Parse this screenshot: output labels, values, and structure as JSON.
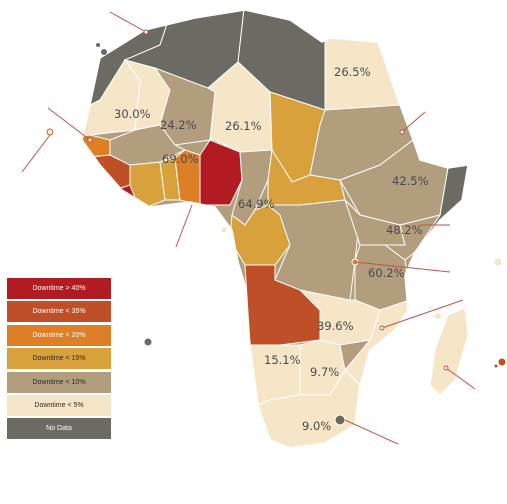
{
  "colors": {
    "downtime_gt_40": "#b31b23",
    "downtime_lt_35": "#bf4f27",
    "downtime_lt_20": "#dc7f26",
    "downtime_lt_15": "#d9a13b",
    "downtime_lt_10": "#b29d7d",
    "downtime_lt_5": "#f5e6c8",
    "no_data": "#6b6a63"
  },
  "legend": {
    "items": [
      {
        "label": "Downtime > 40%",
        "color": "#b31b23"
      },
      {
        "label": "Downtime < 35%",
        "color": "#bf4f27"
      },
      {
        "label": "Downtime < 20%",
        "color": "#dc7f26"
      },
      {
        "label": "Downtime < 15%",
        "color": "#d9a13b"
      },
      {
        "label": "Downtime < 10%",
        "color": "#b29d7d"
      },
      {
        "label": "Downtime < 5%",
        "color": "#f5e6c8"
      },
      {
        "label": "No Data",
        "color": "#6b6a63"
      }
    ]
  },
  "values": {
    "egypt": "26.5%",
    "mali": "30.0%",
    "niger": "24.2%",
    "chad": "26.1%",
    "nigeria": "69.0%",
    "ethiopia": "42.5%",
    "congo": "64.9%",
    "kenya": "48.2%",
    "tanzania": "60.2%",
    "zambia": "39.6%",
    "namibia": "15.1%",
    "botswana": "9.7%",
    "south_africa": "9.0%"
  }
}
